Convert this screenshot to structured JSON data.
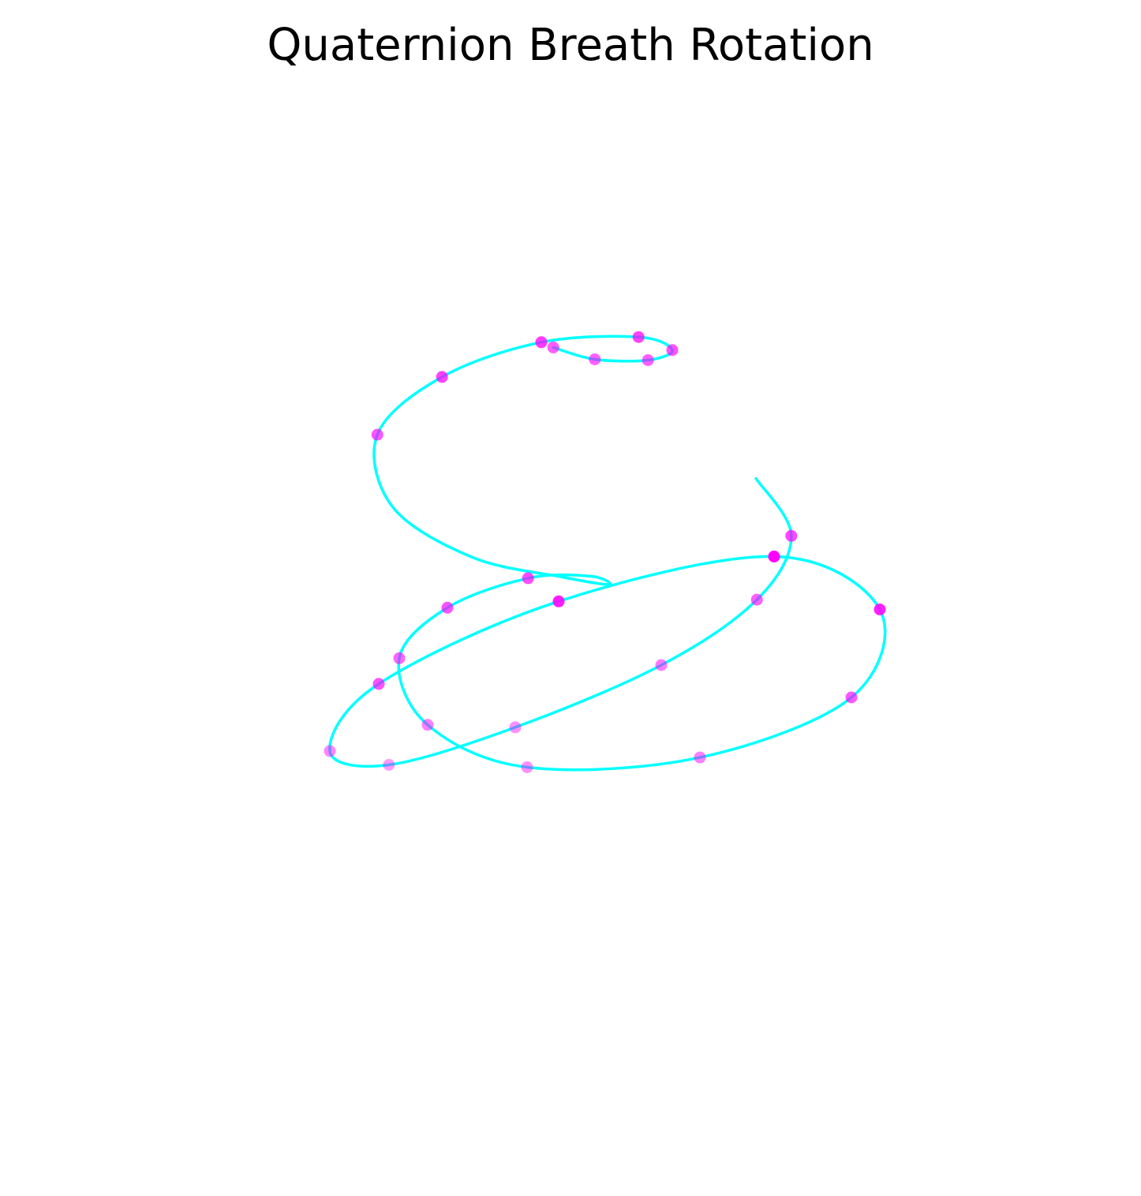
{
  "chart_data": {
    "type": "line",
    "projection": "3d",
    "title": "Quaternion Breath Rotation",
    "axes_visible": false,
    "grid": false,
    "legend": "none",
    "colors": {
      "trajectory": "#00ffff",
      "markers": "#ff00ff",
      "background": "#ffffff"
    },
    "series": [
      {
        "kind": "line",
        "style": "helical spiral, tight coil at both ends, widest loop in the middle",
        "points": [
          [
            0.8,
            -0.3,
            0.4
          ],
          [
            0.92,
            -0.08,
            0.28
          ],
          [
            0.74,
            0.18,
            0.16
          ],
          [
            0.3,
            0.45,
            0.04
          ],
          [
            -0.35,
            0.7,
            -0.08
          ],
          [
            -0.9,
            0.82,
            -0.18
          ],
          [
            -1.12,
            0.6,
            -0.3
          ],
          [
            -0.84,
            0.05,
            -0.42
          ],
          [
            0.0,
            -0.55,
            -0.5
          ],
          [
            0.95,
            -0.85,
            -0.52
          ],
          [
            1.35,
            -0.5,
            -0.5
          ],
          [
            1.15,
            0.1,
            -0.45
          ],
          [
            0.45,
            0.55,
            -0.38
          ],
          [
            -0.3,
            0.7,
            -0.3
          ],
          [
            -0.7,
            0.55,
            -0.2
          ],
          [
            -0.78,
            0.25,
            -0.1
          ],
          [
            -0.55,
            0.05,
            0.0
          ],
          [
            -0.2,
            -0.02,
            0.1
          ],
          [
            0.05,
            0.08,
            0.2
          ],
          [
            0.1,
            0.3,
            0.35
          ],
          [
            -0.12,
            0.42,
            0.5
          ],
          [
            -0.5,
            0.48,
            0.66
          ],
          [
            -0.82,
            0.35,
            0.82
          ],
          [
            -0.85,
            0.08,
            0.98
          ],
          [
            -0.55,
            -0.12,
            1.12
          ],
          [
            -0.12,
            -0.2,
            1.24
          ],
          [
            0.28,
            -0.12,
            1.34
          ],
          [
            0.4,
            0.05,
            1.42
          ],
          [
            0.28,
            0.18,
            1.48
          ],
          [
            0.05,
            0.22,
            1.52
          ],
          [
            -0.12,
            0.18,
            1.55
          ]
        ]
      },
      {
        "kind": "scatter",
        "style": "sampled quaternion states",
        "points": [
          [
            0.92,
            -0.08,
            0.28
          ],
          [
            0.74,
            0.18,
            0.16
          ],
          [
            0.3,
            0.45,
            0.04
          ],
          [
            -0.35,
            0.7,
            -0.08
          ],
          [
            -0.9,
            0.82,
            -0.18
          ],
          [
            -1.12,
            0.6,
            -0.3
          ],
          [
            -0.84,
            0.05,
            -0.42
          ],
          [
            0.0,
            -0.55,
            -0.5
          ],
          [
            0.95,
            -0.85,
            -0.52
          ],
          [
            1.35,
            -0.5,
            -0.5
          ],
          [
            1.15,
            0.1,
            -0.45
          ],
          [
            0.45,
            0.55,
            -0.38
          ],
          [
            -0.3,
            0.7,
            -0.3
          ],
          [
            -0.7,
            0.55,
            -0.2
          ],
          [
            -0.78,
            0.25,
            -0.1
          ],
          [
            -0.55,
            0.05,
            0.0
          ],
          [
            -0.2,
            -0.02,
            0.1
          ],
          [
            -0.85,
            0.08,
            0.98
          ],
          [
            -0.55,
            -0.12,
            1.12
          ],
          [
            -0.12,
            -0.2,
            1.24
          ],
          [
            0.28,
            -0.12,
            1.34
          ],
          [
            0.4,
            0.05,
            1.42
          ],
          [
            0.28,
            0.18,
            1.48
          ],
          [
            0.05,
            0.22,
            1.52
          ],
          [
            -0.12,
            0.18,
            1.55
          ]
        ]
      }
    ]
  }
}
